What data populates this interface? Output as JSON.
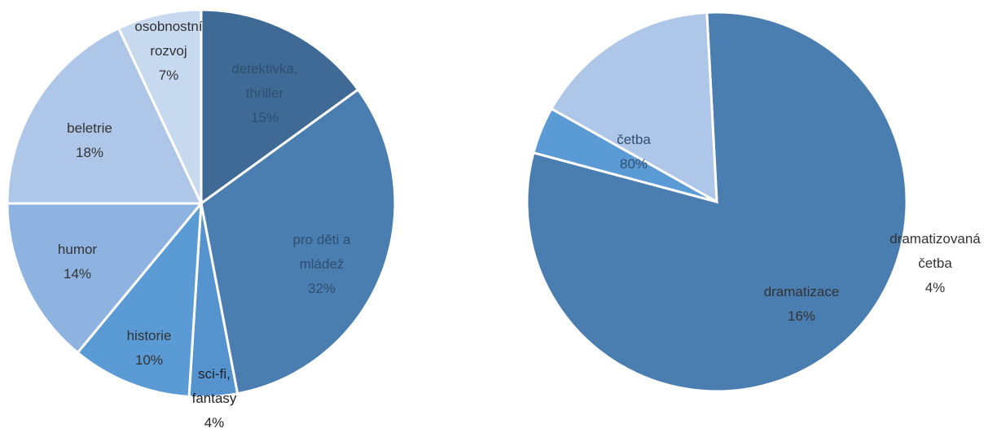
{
  "chart_data": [
    {
      "type": "pie",
      "categories": [
        "detektivka, thriller",
        "pro děti a mládež",
        "sci-fi, fantasy",
        "historie",
        "humor",
        "beletrie",
        "osobnostní rozvoj"
      ],
      "values": [
        15,
        32,
        4,
        10,
        14,
        18,
        7
      ],
      "value_labels": [
        "15%",
        "32%",
        "4%",
        "10%",
        "14%",
        "18%",
        "7%"
      ],
      "colors": [
        "#3f6a96",
        "#4a7db0",
        "#5593cf",
        "#5b9bd5",
        "#8eb3e0",
        "#aec7e8",
        "#c7d9ef"
      ],
      "title": "",
      "legend": "none"
    },
    {
      "type": "pie",
      "categories": [
        "četba",
        "dramatizovaná četba",
        "dramatizace"
      ],
      "values": [
        80,
        4,
        16
      ],
      "value_labels": [
        "80%",
        "4%",
        "16%"
      ],
      "colors": [
        "#4a7eb1",
        "#5b9bd5",
        "#aec7e8"
      ],
      "title": "",
      "legend": "none"
    }
  ]
}
